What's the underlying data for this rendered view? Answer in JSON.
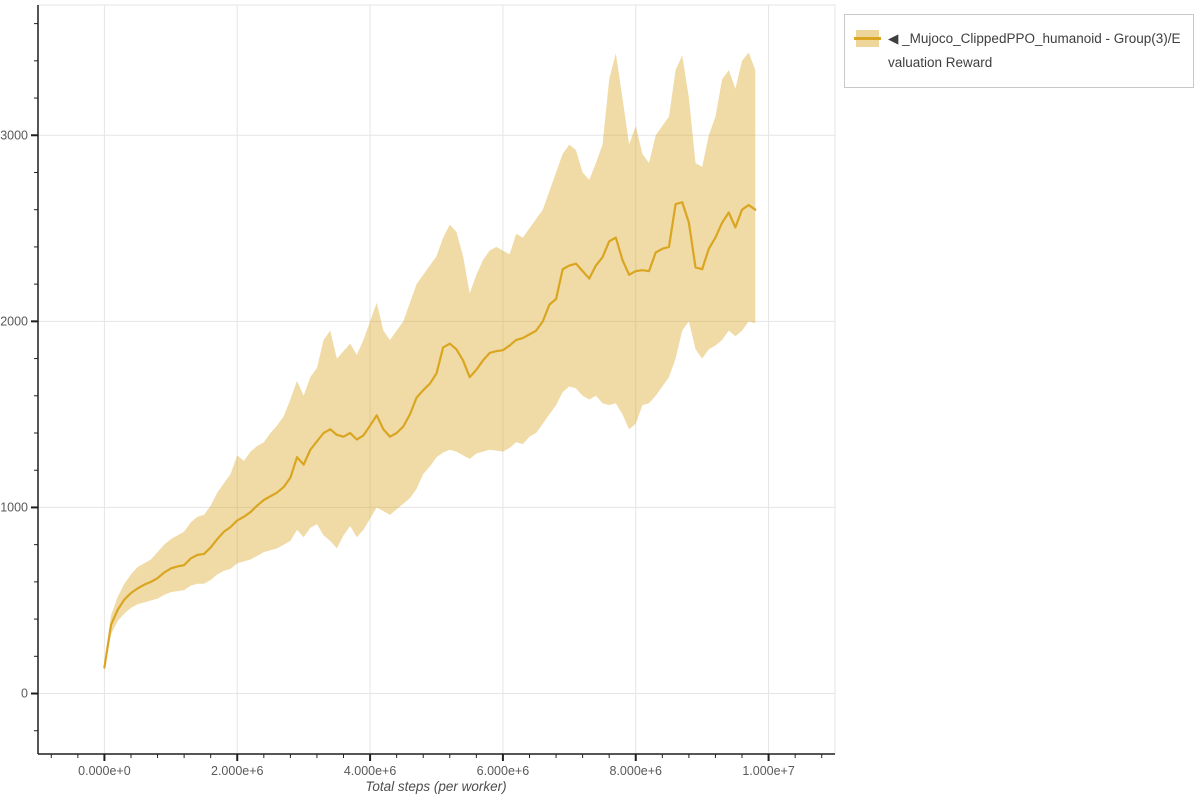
{
  "page": {
    "background": "#ffffff"
  },
  "legend": {
    "label": "◀ _Mujoco_ClippedPPO_humanoid - Group(3)/Evaluation Reward",
    "swatch_color": "#DAA520",
    "border_color": "#c9c9c9"
  },
  "chart_data": {
    "type": "line",
    "title": "",
    "xlabel": "Total steps (per worker)",
    "ylabel": "",
    "x_range": [
      -1000000,
      11000000
    ],
    "y_range": [
      -325,
      3700
    ],
    "grid": true,
    "legend_position": "top-right-outside",
    "colors": {
      "line": "#DAA520",
      "band": "#DAA520",
      "band_opacity": 0.4,
      "grid": "#e5e5e5",
      "outline": "#e5e5e5",
      "axis": "#1f1f1f",
      "tick_label": "#595959"
    },
    "x_ticks": {
      "values": [
        0,
        2000000,
        4000000,
        6000000,
        8000000,
        10000000
      ],
      "labels": [
        "0.000e+0",
        "2.000e+6",
        "4.000e+6",
        "6.000e+6",
        "8.000e+6",
        "1.000e+7"
      ]
    },
    "y_ticks": {
      "values": [
        0,
        1000,
        2000,
        3000
      ],
      "labels": [
        "0",
        "1000",
        "2000",
        "3000"
      ]
    },
    "minor_ticks_per_major": 5,
    "series": [
      {
        "name": "◀ _Mujoco_ClippedPPO_humanoid - Group(3)/Evaluation Reward",
        "x_start": 0,
        "x_step": 100000,
        "mean": [
          140,
          370,
          450,
          505,
          540,
          565,
          585,
          600,
          620,
          650,
          672,
          683,
          690,
          726,
          745,
          750,
          785,
          830,
          870,
          895,
          930,
          950,
          975,
          1010,
          1040,
          1060,
          1080,
          1110,
          1160,
          1270,
          1230,
          1310,
          1355,
          1400,
          1420,
          1390,
          1380,
          1400,
          1365,
          1387,
          1440,
          1495,
          1420,
          1380,
          1400,
          1435,
          1500,
          1590,
          1630,
          1665,
          1720,
          1860,
          1880,
          1850,
          1790,
          1700,
          1740,
          1790,
          1830,
          1840,
          1845,
          1870,
          1900,
          1910,
          1930,
          1950,
          2000,
          2090,
          2120,
          2280,
          2300,
          2310,
          2270,
          2230,
          2300,
          2345,
          2430,
          2450,
          2330,
          2250,
          2270,
          2275,
          2270,
          2370,
          2390,
          2400,
          2630,
          2640,
          2530,
          2290,
          2280,
          2390,
          2450,
          2530,
          2585,
          2505,
          2600,
          2625,
          2600
        ],
        "band_hi": [
          160,
          420,
          520,
          590,
          640,
          680,
          700,
          720,
          760,
          800,
          830,
          850,
          870,
          920,
          950,
          960,
          1010,
          1080,
          1130,
          1180,
          1280,
          1250,
          1300,
          1330,
          1350,
          1400,
          1440,
          1490,
          1580,
          1680,
          1600,
          1700,
          1750,
          1900,
          1950,
          1800,
          1840,
          1880,
          1820,
          1900,
          2000,
          2100,
          1950,
          1900,
          1950,
          2000,
          2100,
          2200,
          2250,
          2300,
          2350,
          2450,
          2520,
          2480,
          2350,
          2150,
          2250,
          2330,
          2380,
          2400,
          2380,
          2360,
          2470,
          2450,
          2500,
          2550,
          2600,
          2700,
          2800,
          2900,
          2950,
          2920,
          2800,
          2760,
          2850,
          2950,
          3300,
          3440,
          3200,
          2950,
          3050,
          2900,
          2850,
          3000,
          3050,
          3100,
          3350,
          3430,
          3200,
          2850,
          2830,
          3000,
          3100,
          3300,
          3350,
          3250,
          3400,
          3445,
          3350
        ],
        "band_lo": [
          120,
          320,
          390,
          430,
          460,
          480,
          490,
          500,
          510,
          530,
          545,
          550,
          555,
          580,
          590,
          590,
          610,
          640,
          660,
          670,
          700,
          710,
          720,
          740,
          760,
          770,
          780,
          800,
          820,
          880,
          840,
          890,
          910,
          850,
          820,
          780,
          850,
          900,
          840,
          880,
          940,
          1000,
          980,
          960,
          990,
          1020,
          1050,
          1100,
          1180,
          1220,
          1270,
          1295,
          1310,
          1300,
          1280,
          1260,
          1290,
          1300,
          1310,
          1305,
          1300,
          1320,
          1350,
          1340,
          1380,
          1400,
          1450,
          1500,
          1550,
          1620,
          1650,
          1640,
          1600,
          1580,
          1600,
          1560,
          1550,
          1560,
          1500,
          1420,
          1450,
          1550,
          1560,
          1600,
          1650,
          1700,
          1800,
          1950,
          2000,
          1850,
          1800,
          1850,
          1870,
          1900,
          1950,
          1920,
          1950,
          2000,
          1990
        ]
      }
    ]
  }
}
